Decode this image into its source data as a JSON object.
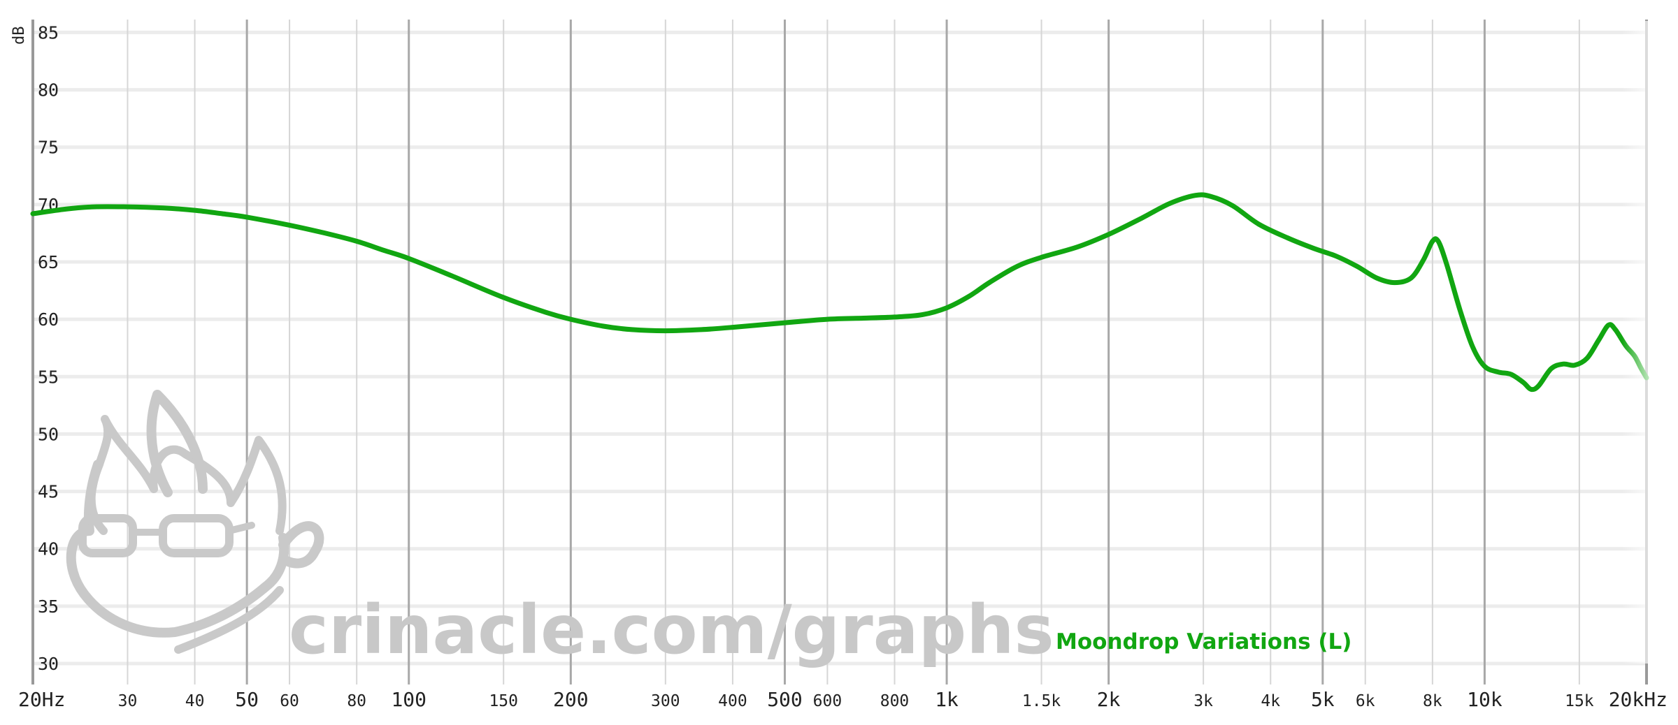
{
  "chart_data": {
    "type": "line",
    "title": "",
    "xlabel": "",
    "ylabel": "dB",
    "x_scale": "log",
    "xlim": [
      20,
      20000
    ],
    "ylim": [
      30,
      86
    ],
    "y_ticks": [
      30,
      35,
      40,
      45,
      50,
      55,
      60,
      65,
      70,
      75,
      80,
      85
    ],
    "x_ticks": [
      {
        "value": 20,
        "label": "20Hz",
        "major": true
      },
      {
        "value": 30,
        "label": "30",
        "major": false
      },
      {
        "value": 40,
        "label": "40",
        "major": false
      },
      {
        "value": 50,
        "label": "50",
        "major": true
      },
      {
        "value": 60,
        "label": "60",
        "major": false
      },
      {
        "value": 80,
        "label": "80",
        "major": false
      },
      {
        "value": 100,
        "label": "100",
        "major": true
      },
      {
        "value": 150,
        "label": "150",
        "major": false
      },
      {
        "value": 200,
        "label": "200",
        "major": true
      },
      {
        "value": 300,
        "label": "300",
        "major": false
      },
      {
        "value": 400,
        "label": "400",
        "major": false
      },
      {
        "value": 500,
        "label": "500",
        "major": true
      },
      {
        "value": 600,
        "label": "600",
        "major": false
      },
      {
        "value": 800,
        "label": "800",
        "major": false
      },
      {
        "value": 1000,
        "label": "1k",
        "major": true
      },
      {
        "value": 1500,
        "label": "1.5k",
        "major": false
      },
      {
        "value": 2000,
        "label": "2k",
        "major": true
      },
      {
        "value": 3000,
        "label": "3k",
        "major": false
      },
      {
        "value": 4000,
        "label": "4k",
        "major": false
      },
      {
        "value": 5000,
        "label": "5k",
        "major": true
      },
      {
        "value": 6000,
        "label": "6k",
        "major": false
      },
      {
        "value": 8000,
        "label": "8k",
        "major": false
      },
      {
        "value": 10000,
        "label": "10k",
        "major": true
      },
      {
        "value": 15000,
        "label": "15k",
        "major": false
      },
      {
        "value": 20000,
        "label": "20kHz",
        "major": true
      }
    ],
    "grid": true,
    "legend_position": "bottom-right",
    "series": [
      {
        "name": "Moondrop Variations (L)",
        "color": "#11a611",
        "points": [
          [
            20,
            69.2
          ],
          [
            23,
            69.6
          ],
          [
            26,
            69.8
          ],
          [
            30,
            69.8
          ],
          [
            35,
            69.7
          ],
          [
            40,
            69.5
          ],
          [
            45,
            69.2
          ],
          [
            50,
            68.9
          ],
          [
            60,
            68.2
          ],
          [
            70,
            67.5
          ],
          [
            80,
            66.8
          ],
          [
            90,
            66.0
          ],
          [
            100,
            65.3
          ],
          [
            120,
            63.8
          ],
          [
            150,
            61.9
          ],
          [
            180,
            60.6
          ],
          [
            200,
            60.0
          ],
          [
            230,
            59.4
          ],
          [
            260,
            59.1
          ],
          [
            300,
            59.0
          ],
          [
            350,
            59.1
          ],
          [
            400,
            59.3
          ],
          [
            500,
            59.7
          ],
          [
            600,
            60.0
          ],
          [
            700,
            60.1
          ],
          [
            800,
            60.2
          ],
          [
            900,
            60.4
          ],
          [
            1000,
            61.0
          ],
          [
            1100,
            62.0
          ],
          [
            1200,
            63.2
          ],
          [
            1350,
            64.6
          ],
          [
            1500,
            65.4
          ],
          [
            1750,
            66.3
          ],
          [
            2000,
            67.4
          ],
          [
            2300,
            68.8
          ],
          [
            2600,
            70.1
          ],
          [
            2900,
            70.8
          ],
          [
            3100,
            70.7
          ],
          [
            3400,
            69.9
          ],
          [
            3800,
            68.3
          ],
          [
            4300,
            67.1
          ],
          [
            4800,
            66.2
          ],
          [
            5300,
            65.5
          ],
          [
            5800,
            64.6
          ],
          [
            6300,
            63.6
          ],
          [
            6800,
            63.2
          ],
          [
            7300,
            63.6
          ],
          [
            7700,
            65.2
          ],
          [
            8000,
            66.8
          ],
          [
            8200,
            66.8
          ],
          [
            8500,
            64.8
          ],
          [
            9000,
            60.8
          ],
          [
            9500,
            57.6
          ],
          [
            10000,
            55.9
          ],
          [
            10600,
            55.4
          ],
          [
            11200,
            55.2
          ],
          [
            11800,
            54.5
          ],
          [
            12200,
            53.9
          ],
          [
            12600,
            54.2
          ],
          [
            13300,
            55.7
          ],
          [
            14000,
            56.1
          ],
          [
            14700,
            56.0
          ],
          [
            15500,
            56.6
          ],
          [
            16300,
            58.2
          ],
          [
            17000,
            59.5
          ],
          [
            17500,
            59.1
          ],
          [
            18300,
            57.7
          ],
          [
            19000,
            56.8
          ],
          [
            19500,
            55.8
          ],
          [
            20000,
            54.9
          ]
        ]
      }
    ]
  },
  "watermark": {
    "text": "crinacle.com/graphs",
    "icon": "crinacle-mascot-logo"
  }
}
